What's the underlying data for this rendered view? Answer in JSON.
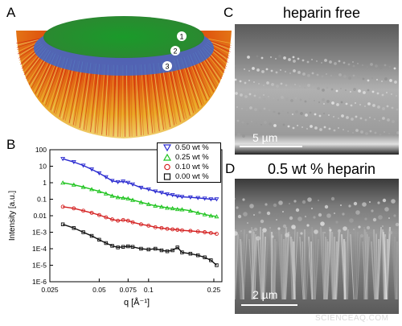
{
  "panels": {
    "a": {
      "letter": "A",
      "markers": [
        "1",
        "2",
        "3"
      ]
    },
    "b": {
      "letter": "B"
    },
    "c": {
      "letter": "C",
      "title": "heparin free",
      "scale": "5 µm"
    },
    "d": {
      "letter": "D",
      "title": "0.5 wt % heparin",
      "scale": "2 µm"
    }
  },
  "watermark": "SCIENCEAQ.COM",
  "colors": {
    "blue": "#2a2ad0",
    "green": "#1fc41f",
    "red": "#d42020",
    "black": "#111111"
  },
  "chart_data": {
    "type": "scatter",
    "xlabel": "q [Å⁻¹]",
    "ylabel": "Intensity [a.u.]",
    "xscale": "log",
    "yscale": "log",
    "xlim": [
      0.025,
      0.28
    ],
    "ylim": [
      1e-06,
      100
    ],
    "x_ticks": [
      "0.025",
      "0.05",
      "0.075",
      "0.1",
      "0.25"
    ],
    "y_ticks": [
      "100",
      "10",
      "1",
      "0.1",
      "0.01",
      "1E-3",
      "1E-4",
      "1E-5",
      "1E-6"
    ],
    "legend_position": "top-right",
    "series": [
      {
        "name": "0.50 wt %",
        "marker": "triangle-down",
        "color": "#2a2ad0",
        "x": [
          0.03,
          0.035,
          0.04,
          0.045,
          0.05,
          0.055,
          0.06,
          0.065,
          0.07,
          0.075,
          0.08,
          0.09,
          0.1,
          0.11,
          0.12,
          0.13,
          0.14,
          0.15,
          0.16,
          0.18,
          0.2,
          0.22,
          0.24,
          0.26
        ],
        "y": [
          28,
          18,
          11,
          6.5,
          3.8,
          2.2,
          1.3,
          1.1,
          1.2,
          1.0,
          0.8,
          0.5,
          0.4,
          0.3,
          0.25,
          0.2,
          0.18,
          0.15,
          0.14,
          0.13,
          0.12,
          0.11,
          0.1,
          0.1
        ]
      },
      {
        "name": "0.25 wt %",
        "marker": "triangle-up",
        "color": "#1fc41f",
        "x": [
          0.03,
          0.035,
          0.04,
          0.045,
          0.05,
          0.055,
          0.06,
          0.065,
          0.07,
          0.075,
          0.08,
          0.09,
          0.1,
          0.11,
          0.12,
          0.13,
          0.14,
          0.15,
          0.16,
          0.18,
          0.2,
          0.22,
          0.24,
          0.26
        ],
        "y": [
          1.0,
          0.75,
          0.55,
          0.4,
          0.3,
          0.22,
          0.16,
          0.13,
          0.12,
          0.11,
          0.09,
          0.065,
          0.05,
          0.04,
          0.035,
          0.03,
          0.028,
          0.025,
          0.024,
          0.02,
          0.015,
          0.012,
          0.01,
          0.009
        ]
      },
      {
        "name": "0.10 wt %",
        "marker": "circle",
        "color": "#d42020",
        "x": [
          0.03,
          0.035,
          0.04,
          0.045,
          0.05,
          0.055,
          0.06,
          0.065,
          0.07,
          0.075,
          0.08,
          0.09,
          0.1,
          0.11,
          0.12,
          0.13,
          0.14,
          0.15,
          0.16,
          0.18,
          0.2,
          0.22,
          0.24,
          0.26
        ],
        "y": [
          0.035,
          0.028,
          0.02,
          0.015,
          0.011,
          0.008,
          0.006,
          0.005,
          0.0055,
          0.005,
          0.004,
          0.003,
          0.0025,
          0.002,
          0.0018,
          0.0016,
          0.0015,
          0.0014,
          0.0013,
          0.0012,
          0.0011,
          0.001,
          0.0009,
          0.0008
        ]
      },
      {
        "name": "0.00 wt %",
        "marker": "square",
        "color": "#111111",
        "x": [
          0.03,
          0.035,
          0.04,
          0.045,
          0.05,
          0.055,
          0.06,
          0.065,
          0.07,
          0.075,
          0.08,
          0.09,
          0.1,
          0.11,
          0.12,
          0.13,
          0.14,
          0.15,
          0.16,
          0.18,
          0.2,
          0.22,
          0.24,
          0.26
        ],
        "y": [
          0.003,
          0.0018,
          0.001,
          0.0006,
          0.00035,
          0.00022,
          0.00015,
          0.00012,
          0.00013,
          0.00014,
          0.00013,
          0.0001,
          9e-05,
          0.0001,
          8e-05,
          7e-05,
          8e-05,
          0.00012,
          6e-05,
          5e-05,
          4e-05,
          3e-05,
          2e-05,
          1e-05
        ]
      }
    ]
  }
}
